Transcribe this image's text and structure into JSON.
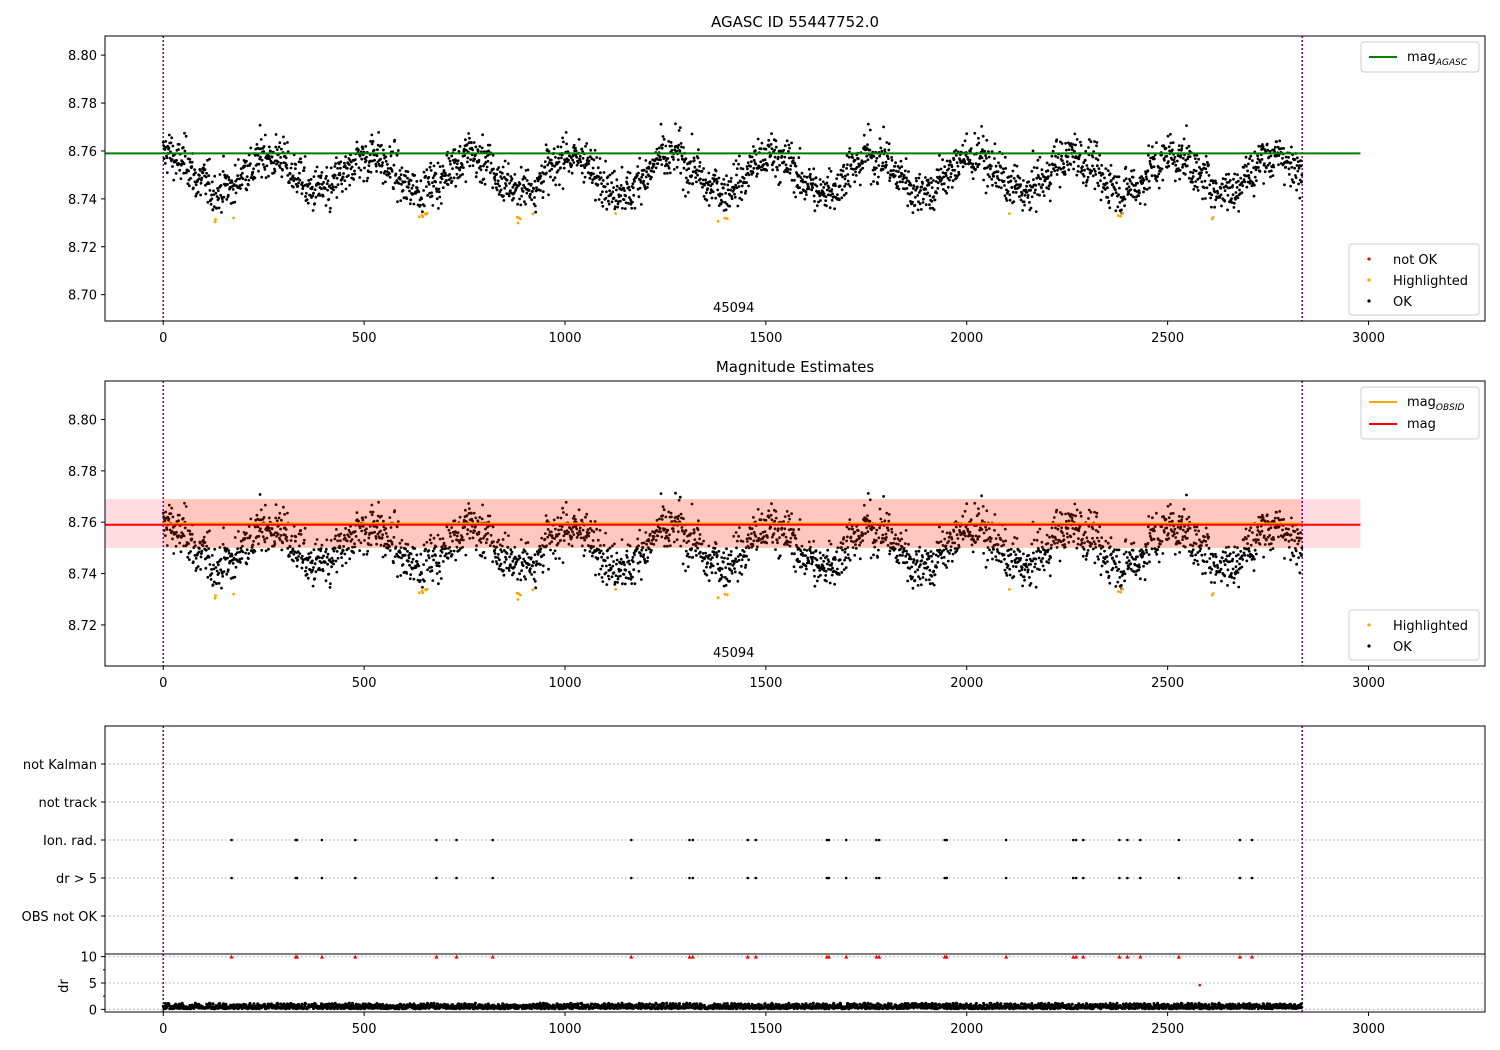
{
  "chart_data": [
    {
      "type": "scatter",
      "title": "AGASC ID 55447752.0",
      "xlim": [
        -145,
        3290
      ],
      "ylim": [
        8.689,
        8.808
      ],
      "x_ticks": [
        0,
        500,
        1000,
        1500,
        2000,
        2500,
        3000
      ],
      "y_ticks": [
        8.7,
        8.72,
        8.74,
        8.76,
        8.78,
        8.8
      ],
      "y_tick_format": 2,
      "grid": false,
      "obsid_boundaries": [
        0,
        2835
      ],
      "obsid_label": "45094",
      "obsid_label_x": 1420,
      "mag_agasc": 8.759,
      "mag_line_x_range": [
        -145,
        2980
      ],
      "point_summary": {
        "n_points": 2835,
        "ok_range": [
          8.734,
          8.776
        ],
        "highlighted_range": [
          8.719,
          8.736
        ],
        "baseline_period": 250
      },
      "legend_upper": {
        "position": "upper right",
        "entries": [
          {
            "label": "mag",
            "sub": "AGASC",
            "color": "#008000",
            "kind": "line"
          }
        ]
      },
      "legend_lower": {
        "position": "lower right",
        "entries": [
          {
            "label": "not OK",
            "color": "#ff0000",
            "kind": "dot"
          },
          {
            "label": "Highlighted",
            "color": "#ffa500",
            "kind": "dot"
          },
          {
            "label": "OK",
            "color": "#000000",
            "kind": "dot"
          }
        ]
      }
    },
    {
      "type": "scatter",
      "title": "Magnitude Estimates",
      "xlim": [
        -145,
        3290
      ],
      "ylim": [
        8.704,
        8.815
      ],
      "x_ticks": [
        0,
        500,
        1000,
        1500,
        2000,
        2500,
        3000
      ],
      "y_ticks": [
        8.72,
        8.74,
        8.76,
        8.78,
        8.8
      ],
      "y_tick_format": 2,
      "grid": false,
      "obsid_boundaries": [
        0,
        2835
      ],
      "obsid_label": "45094",
      "obsid_label_x": 1420,
      "mag": 8.759,
      "mag_obsid": 8.7595,
      "band": [
        8.75,
        8.769
      ],
      "band_x_range": [
        -145,
        2980
      ],
      "legend_upper": {
        "position": "upper right",
        "entries": [
          {
            "label": "mag",
            "sub": "OBSID",
            "color": "#ffa500",
            "kind": "line"
          },
          {
            "label": "mag",
            "sub": "",
            "color": "#ff0000",
            "kind": "line"
          }
        ]
      },
      "legend_lower": {
        "position": "lower right",
        "entries": [
          {
            "label": "Highlighted",
            "color": "#ffa500",
            "kind": "dot"
          },
          {
            "label": "OK",
            "color": "#000000",
            "kind": "dot"
          }
        ]
      }
    },
    {
      "type": "scatter",
      "title": "",
      "xlim": [
        -145,
        3290
      ],
      "categories": [
        "OBS not OK",
        "dr > 5",
        "Ion. rad.",
        "not track",
        "not Kalman"
      ],
      "grid": "horizontal dotted",
      "flag_x": [
        170,
        330,
        333,
        395,
        478,
        680,
        730,
        820,
        1165,
        1310,
        1318,
        1455,
        1475,
        1652,
        1657,
        1700,
        1775,
        1782,
        1945,
        1950,
        2098,
        2265,
        2272,
        2290,
        2380,
        2400,
        2432,
        2528,
        2680,
        2710
      ],
      "flag_rows": [
        "dr > 5",
        "Ion. rad."
      ],
      "obsid_boundaries": [
        0,
        2835
      ]
    },
    {
      "type": "scatter",
      "title": "",
      "ylabel": "dr",
      "xlim": [
        -145,
        3290
      ],
      "ylim": [
        -0.5,
        10.5
      ],
      "x_ticks": [
        0,
        500,
        1000,
        1500,
        2000,
        2500,
        3000
      ],
      "y_ticks": [
        0,
        5,
        10
      ],
      "y_tick_format": 0,
      "grid": "horizontal dotted",
      "dr_clipped_value": 10,
      "dr_outlier": {
        "x": 2580,
        "y": 4.6
      },
      "dr_baseline_range": [
        0.1,
        1.2
      ],
      "obsid_boundaries": [
        0,
        2835
      ]
    }
  ]
}
